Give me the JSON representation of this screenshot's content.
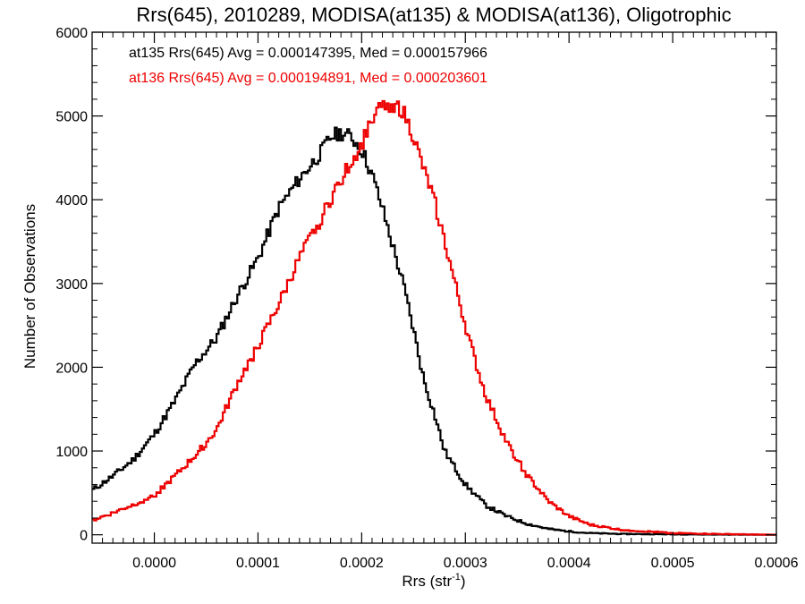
{
  "chart_data": {
    "type": "line",
    "style": "histogram-step",
    "title": "Rrs(645), 2010289, MODISA(at135) & MODISA(at136), Oligotrophic",
    "xlabel": "Rrs (str",
    "xlabel_superscript": "-1",
    "xlabel_suffix": ")",
    "ylabel": "Number of Observations",
    "xlim": [
      -6e-05,
      0.0006
    ],
    "ylim": [
      -100,
      6000
    ],
    "grid": false,
    "x_ticks": [
      {
        "value": 0.0,
        "label": "0.0000"
      },
      {
        "value": 0.0001,
        "label": "0.0001"
      },
      {
        "value": 0.0002,
        "label": "0.0002"
      },
      {
        "value": 0.0003,
        "label": "0.0003"
      },
      {
        "value": 0.0004,
        "label": "0.0004"
      },
      {
        "value": 0.0005,
        "label": "0.0005"
      },
      {
        "value": 0.0006,
        "label": "0.0006"
      }
    ],
    "y_ticks": [
      {
        "value": 0,
        "label": "0"
      },
      {
        "value": 1000,
        "label": "1000"
      },
      {
        "value": 2000,
        "label": "2000"
      },
      {
        "value": 3000,
        "label": "3000"
      },
      {
        "value": 4000,
        "label": "4000"
      },
      {
        "value": 5000,
        "label": "5000"
      },
      {
        "value": 6000,
        "label": "6000"
      }
    ],
    "annotations": [
      {
        "text": "at135 Rrs(645) Avg = 0.000147395, Med = 0.000157966",
        "color": "#000000"
      },
      {
        "text": "at136 Rrs(645) Avg = 0.000194891, Med = 0.000203601",
        "color": "#ee0000"
      }
    ],
    "series": [
      {
        "color": "#000000",
        "x": [
          -6e-05,
          -4e-05,
          -2e-05,
          0.0,
          2e-05,
          4e-05,
          6e-05,
          8e-05,
          0.0001,
          0.00012,
          0.00014,
          0.00016,
          0.00017,
          0.00018,
          0.00019,
          0.0002,
          0.00021,
          0.00022,
          0.00023,
          0.00024,
          0.00025,
          0.00026,
          0.00027,
          0.00028,
          0.0003,
          0.00032,
          0.00034,
          0.00036,
          0.00038,
          0.0004,
          0.00042,
          0.00045,
          0.0005,
          0.00055,
          0.0006
        ],
        "y": [
          530,
          700,
          900,
          1200,
          1600,
          2050,
          2350,
          2850,
          3300,
          3900,
          4250,
          4550,
          4750,
          4800,
          4750,
          4600,
          4300,
          3900,
          3450,
          3000,
          2450,
          1850,
          1450,
          1000,
          600,
          350,
          220,
          130,
          70,
          40,
          20,
          10,
          5,
          2,
          0
        ]
      },
      {
        "color": "#ee0000",
        "x": [
          -6e-05,
          -4e-05,
          -2e-05,
          0.0,
          2e-05,
          4e-05,
          6e-05,
          8e-05,
          0.0001,
          0.00012,
          0.00014,
          0.00016,
          0.00018,
          0.0002,
          0.00021,
          0.00022,
          0.00023,
          0.00024,
          0.00025,
          0.00026,
          0.00027,
          0.00028,
          0.00029,
          0.0003,
          0.00031,
          0.00032,
          0.00034,
          0.00036,
          0.00038,
          0.0004,
          0.00042,
          0.00045,
          0.0005,
          0.00055,
          0.0006
        ],
        "y": [
          170,
          260,
          360,
          470,
          700,
          950,
          1250,
          1800,
          2250,
          2750,
          3300,
          3750,
          4250,
          4650,
          5000,
          5100,
          5150,
          5050,
          4750,
          4350,
          4000,
          3500,
          3000,
          2500,
          2050,
          1650,
          1100,
          700,
          400,
          220,
          120,
          60,
          20,
          8,
          0
        ]
      }
    ]
  }
}
